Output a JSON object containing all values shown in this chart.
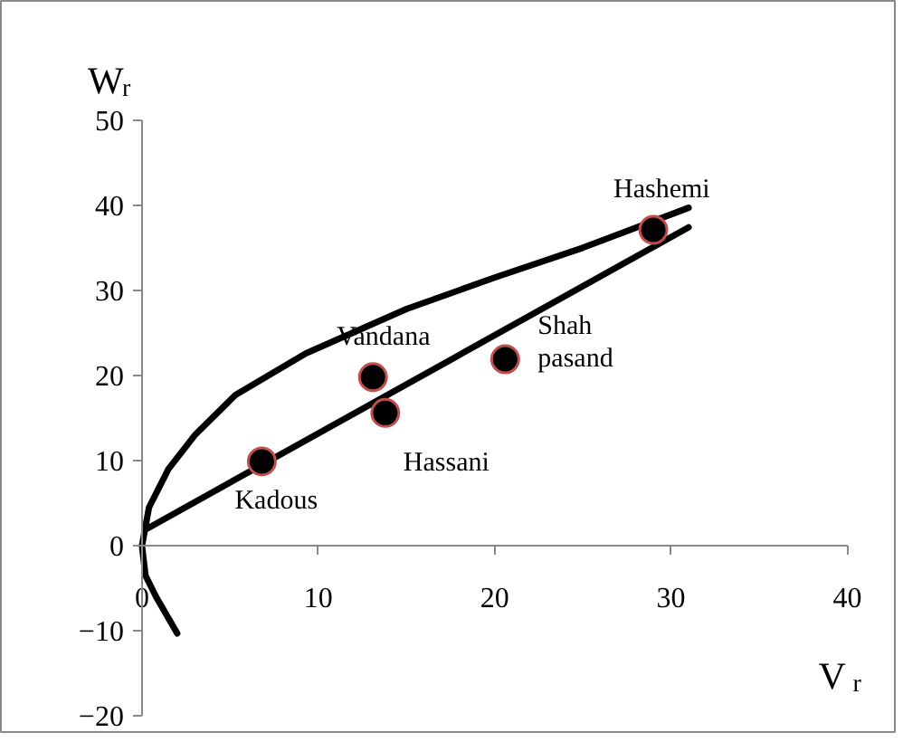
{
  "chart_data": {
    "type": "scatter",
    "xlabel": "V$_{r}$",
    "ylabel": "W$_{r}$",
    "xlim": [
      0,
      40
    ],
    "ylim": [
      -20,
      50
    ],
    "xticks": [
      0,
      10,
      20,
      30,
      40
    ],
    "yticks": [
      -20,
      -10,
      0,
      10,
      20,
      30,
      40,
      50
    ],
    "grid": false,
    "series": [
      {
        "type": "line",
        "marker": "none",
        "color": "#000000",
        "x": [
          2,
          0.8,
          0.2,
          0,
          0.4,
          1.5,
          3,
          5.3,
          9.3,
          15,
          20,
          25,
          31
        ],
        "values": [
          -10.3,
          -6,
          -3.5,
          0,
          4.5,
          9,
          13,
          17.7,
          22.6,
          27.8,
          31.5,
          35,
          39.7
        ]
      },
      {
        "type": "line",
        "marker": "none",
        "color": "#000000",
        "x": [
          0.2,
          31
        ],
        "values": [
          1.9,
          37.4
        ]
      },
      {
        "marker": "circle",
        "color": "#000000",
        "x": [
          6.8,
          13.1,
          13.8,
          20.6,
          29.0
        ],
        "values": [
          9.9,
          19.8,
          15.6,
          21.9,
          37.1
        ]
      }
    ],
    "annotations": [
      {
        "text": "Kadous",
        "x": 6.8,
        "y": 9.9
      },
      {
        "text": "Vandana",
        "x": 13.1,
        "y": 19.8
      },
      {
        "text": "Hassani",
        "x": 13.8,
        "y": 15.6
      },
      {
        "text": "Shah\npasand",
        "x": 20.6,
        "y": 21.9
      },
      {
        "text": "Hashemi",
        "x": 29.0,
        "y": 37.1
      }
    ]
  }
}
